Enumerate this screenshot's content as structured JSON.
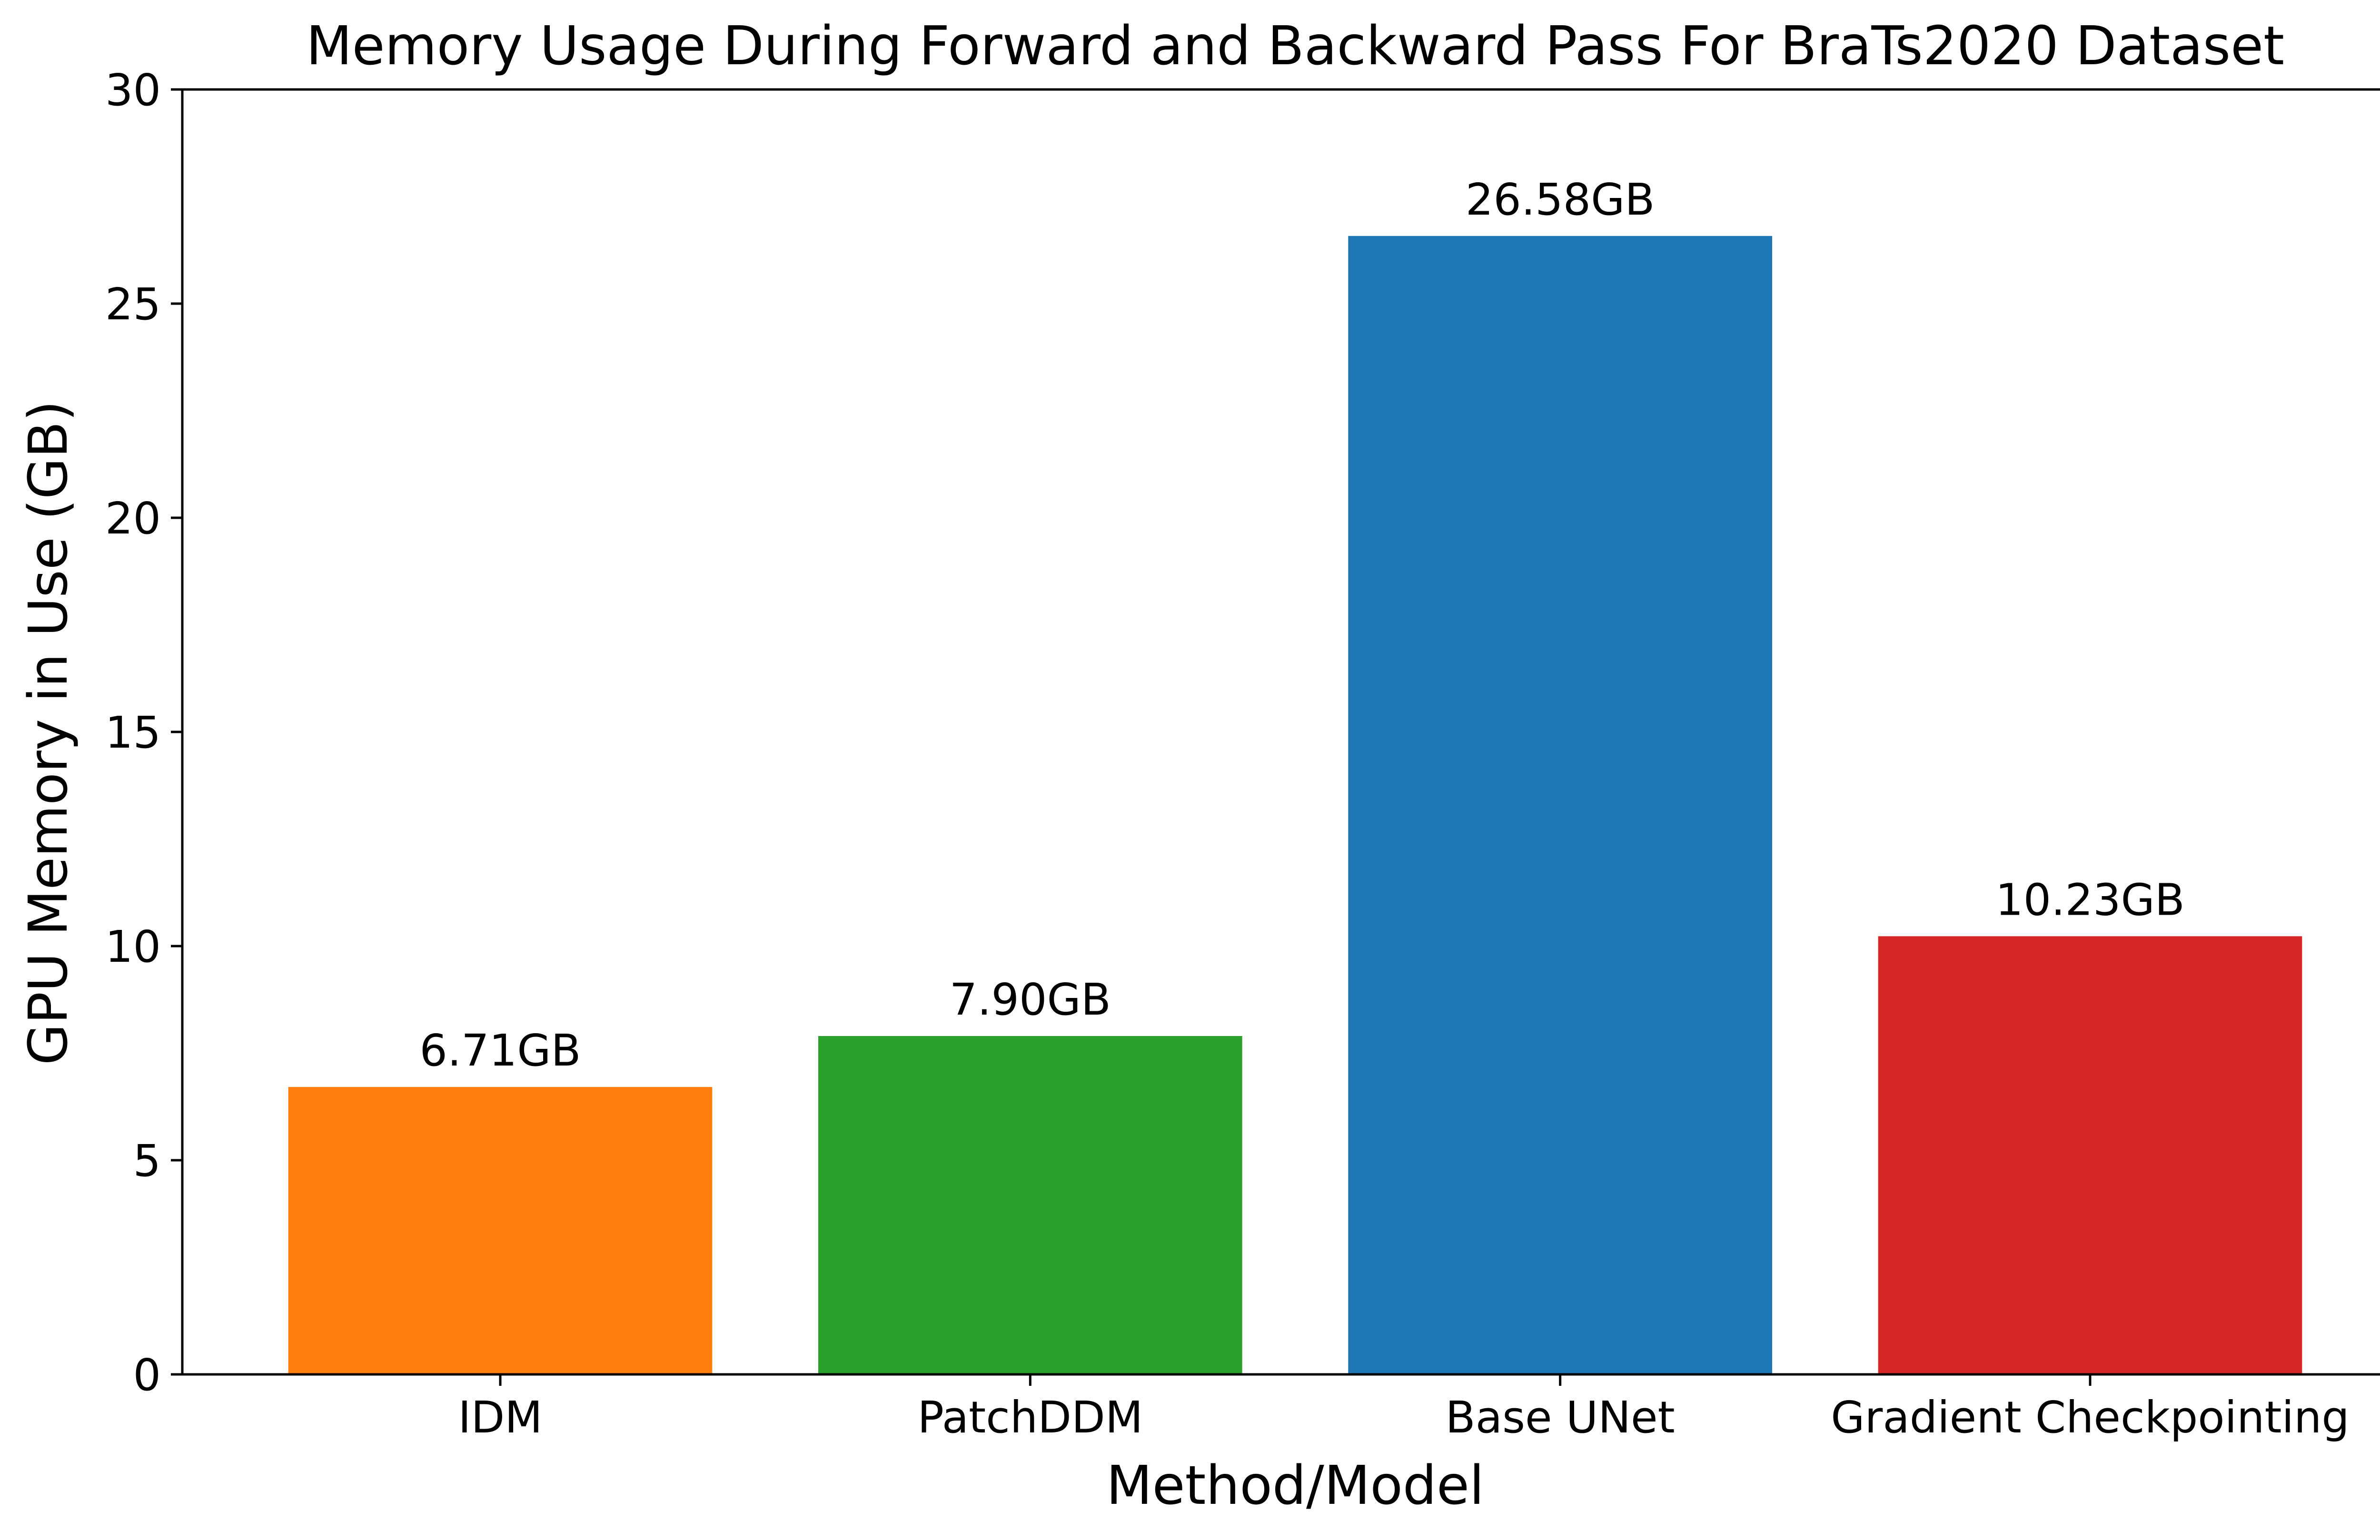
{
  "chart_data": {
    "type": "bar",
    "title": "Memory Usage During Forward and Backward Pass For BraTs2020 Dataset",
    "xlabel": "Method/Model",
    "ylabel": "GPU Memory in Use (GB)",
    "categories": [
      "IDM",
      "PatchDDM",
      "Base UNet",
      "Gradient Checkpointing"
    ],
    "values": [
      6.71,
      7.9,
      26.58,
      10.23
    ],
    "value_labels": [
      "6.71GB",
      "7.90GB",
      "26.58GB",
      "10.23GB"
    ],
    "colors": [
      "#ff7f0e",
      "#2ca02c",
      "#1f77b4",
      "#d62728"
    ],
    "ylim": [
      0,
      30
    ],
    "yticks": [
      0,
      5,
      10,
      15,
      20,
      25,
      30
    ],
    "grid": false,
    "legend": "none"
  }
}
